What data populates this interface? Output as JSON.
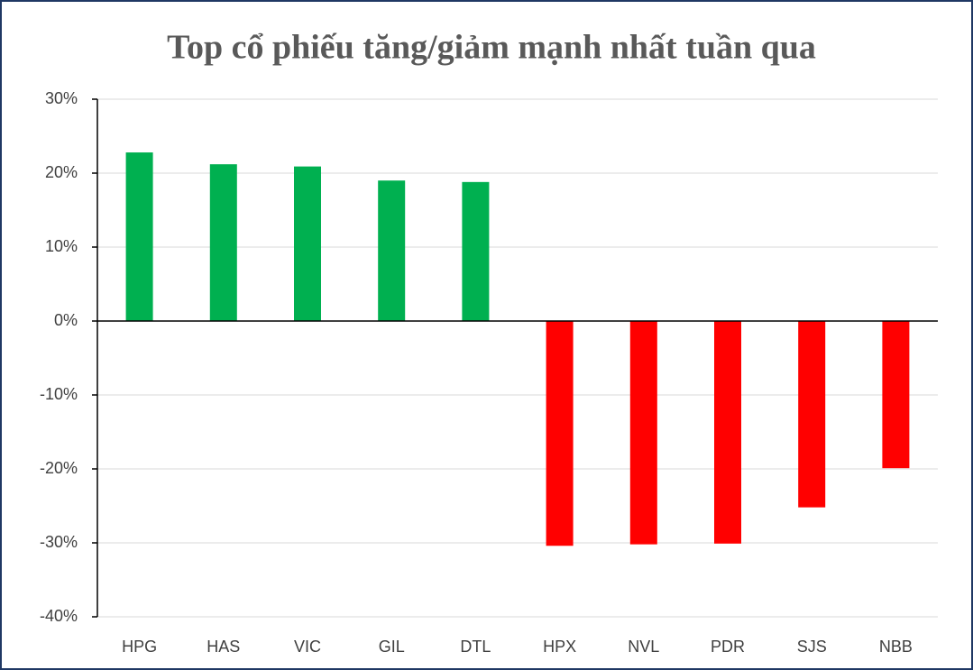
{
  "chart_data": {
    "type": "bar",
    "title": "Top cổ phiếu tăng/giảm mạnh nhất tuần qua",
    "categories": [
      "HPG",
      "HAS",
      "VIC",
      "GIL",
      "DTL",
      "HPX",
      "NVL",
      "PDR",
      "SJS",
      "NBB"
    ],
    "values": [
      22.8,
      21.2,
      20.9,
      19.0,
      18.8,
      -30.4,
      -30.2,
      -30.1,
      -25.2,
      -19.9
    ],
    "colors": [
      "#00b050",
      "#00b050",
      "#00b050",
      "#00b050",
      "#00b050",
      "#ff0000",
      "#ff0000",
      "#ff0000",
      "#ff0000",
      "#ff0000"
    ],
    "ylim": [
      -40,
      30
    ],
    "yticks": [
      {
        "value": -40,
        "label": "-40%"
      },
      {
        "value": -30,
        "label": "-30%"
      },
      {
        "value": -20,
        "label": "-20%"
      },
      {
        "value": -10,
        "label": "-10%"
      },
      {
        "value": 0,
        "label": "0%"
      },
      {
        "value": 10,
        "label": "10%"
      },
      {
        "value": 20,
        "label": "20%"
      },
      {
        "value": 30,
        "label": "30%"
      }
    ],
    "grid": true
  }
}
